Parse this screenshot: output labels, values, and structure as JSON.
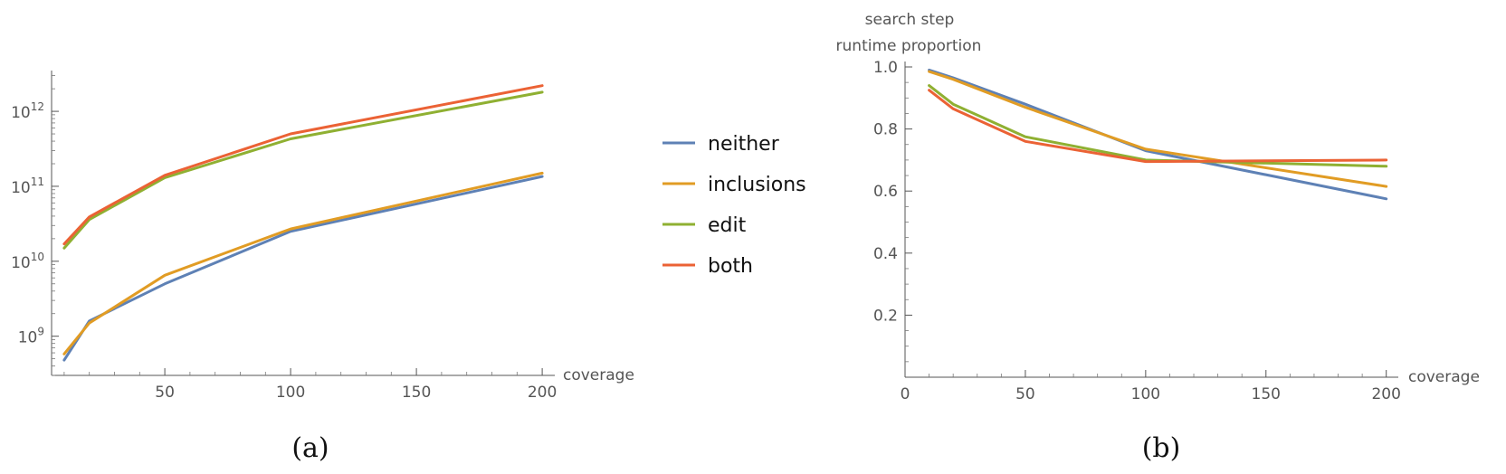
{
  "legend": [
    {
      "name": "neither",
      "color": "#5E81B5"
    },
    {
      "name": "inclusions",
      "color": "#E19C24"
    },
    {
      "name": "edit",
      "color": "#8FB032"
    },
    {
      "name": "both",
      "color": "#EB6235"
    }
  ],
  "chart_data": [
    {
      "type": "line",
      "caption": "(a)",
      "xlabel": "coverage",
      "ylabel": "",
      "y_scale": "log",
      "xlim": [
        5,
        205
      ],
      "ylim": [
        300000000.0,
        3500000000000.0
      ],
      "x_ticks": [
        50,
        100,
        150,
        200
      ],
      "y_ticks": [
        {
          "label_base": "10",
          "label_exp": "9",
          "value": 1000000000.0
        },
        {
          "label_base": "10",
          "label_exp": "10",
          "value": 10000000000.0
        },
        {
          "label_base": "10",
          "label_exp": "11",
          "value": 100000000000.0
        },
        {
          "label_base": "10",
          "label_exp": "12",
          "value": 1000000000000.0
        }
      ],
      "series": [
        {
          "name": "neither",
          "x": [
            10,
            20,
            50,
            100,
            200
          ],
          "y": [
            480000000.0,
            1600000000.0,
            5000000000.0,
            25000000000.0,
            135000000000.0
          ]
        },
        {
          "name": "inclusions",
          "x": [
            10,
            20,
            50,
            100,
            200
          ],
          "y": [
            580000000.0,
            1500000000.0,
            6500000000.0,
            27000000000.0,
            150000000000.0
          ]
        },
        {
          "name": "edit",
          "x": [
            10,
            20,
            50,
            100,
            200
          ],
          "y": [
            15000000000.0,
            36000000000.0,
            130000000000.0,
            430000000000.0,
            1800000000000.0
          ]
        },
        {
          "name": "both",
          "x": [
            10,
            20,
            50,
            100,
            200
          ],
          "y": [
            17000000000.0,
            39000000000.0,
            140000000000.0,
            500000000000.0,
            2200000000000.0
          ]
        }
      ]
    },
    {
      "type": "line",
      "caption": "(b)",
      "xlabel": "coverage",
      "ylabel_line1": "search step",
      "ylabel_line2": "runtime proportion",
      "y_scale": "linear",
      "xlim": [
        0,
        205
      ],
      "ylim": [
        0,
        1.0
      ],
      "x_ticks": [
        0,
        50,
        100,
        150,
        200
      ],
      "y_ticks": [
        0.2,
        0.4,
        0.6,
        0.8,
        1.0
      ],
      "y_tick_labels": [
        "0.2",
        "0.4",
        "0.6",
        "0.8",
        "1.0"
      ],
      "series": [
        {
          "name": "neither",
          "x": [
            10,
            20,
            50,
            100,
            200
          ],
          "y": [
            0.99,
            0.965,
            0.88,
            0.73,
            0.575
          ]
        },
        {
          "name": "inclusions",
          "x": [
            10,
            20,
            50,
            100,
            200
          ],
          "y": [
            0.985,
            0.96,
            0.87,
            0.735,
            0.615
          ]
        },
        {
          "name": "edit",
          "x": [
            10,
            20,
            50,
            100,
            200
          ],
          "y": [
            0.94,
            0.88,
            0.775,
            0.7,
            0.68
          ]
        },
        {
          "name": "both",
          "x": [
            10,
            20,
            50,
            100,
            200
          ],
          "y": [
            0.925,
            0.865,
            0.76,
            0.695,
            0.7
          ]
        }
      ]
    }
  ]
}
